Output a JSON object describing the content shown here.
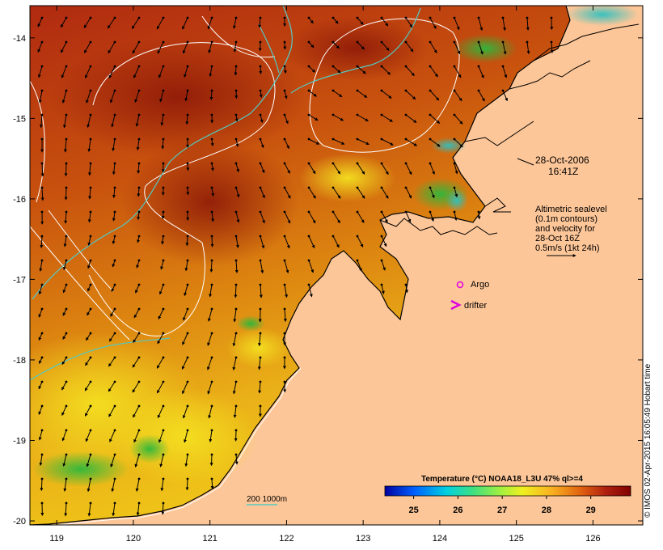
{
  "map": {
    "longitude_ticks": [
      "119",
      "120",
      "121",
      "122",
      "123",
      "124",
      "125",
      "126"
    ],
    "latitude_ticks": [
      "-14",
      "-15",
      "-16",
      "-17",
      "-18",
      "-19",
      "-20"
    ],
    "lon_range": [
      118.65,
      126.65
    ],
    "lat_range": [
      -20.05,
      -13.6
    ],
    "colors": {
      "land": "#fdc698",
      "warm": "#a8220e",
      "mid": "#d5700f",
      "cool": "#f2bf16",
      "green": "#30c040",
      "contour": "#ffffff",
      "isobath": "#55c8c0",
      "argo": "#e000e0"
    }
  },
  "annotations": {
    "datetime_line1": "28-Oct-2006",
    "datetime_line2": "16:41Z",
    "info_line1": "Altimetric sealevel",
    "info_line2": "(0.1m contours)",
    "info_line3": "and velocity for",
    "info_line4": "28-Oct 16Z",
    "info_line5": "0.5m/s (1kt 24h)",
    "argo_label": "Argo",
    "drifter_label": "drifter",
    "isobath_label": "200  1000m"
  },
  "colorbar": {
    "title": "Temperature (°C) NOAA18_L3U 47% ql>=4",
    "ticks": [
      "25",
      "26",
      "27",
      "28",
      "29"
    ],
    "stops": [
      "#0000a0",
      "#0060ff",
      "#00d0e0",
      "#40e080",
      "#a0f040",
      "#f0f020",
      "#f8b020",
      "#e06010",
      "#b02010",
      "#800000"
    ]
  },
  "credit": "© IMOS 02-Apr-2015 16:05:49 Hobart time"
}
